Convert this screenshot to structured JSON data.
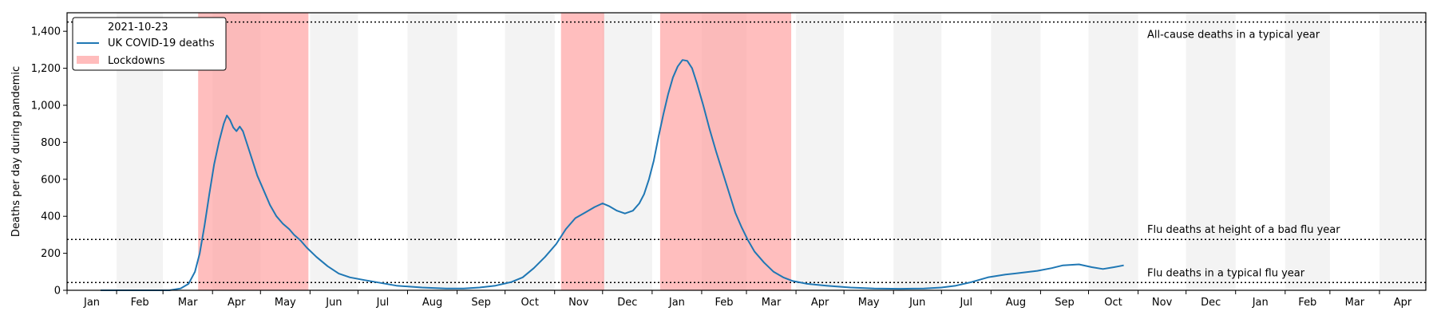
{
  "chart_data": {
    "type": "line",
    "ylabel": "Deaths per day during pandemic",
    "ylim": [
      0,
      1500
    ],
    "yticks": [
      0,
      200,
      400,
      600,
      800,
      1000,
      1200,
      1400
    ],
    "ytick_labels": [
      "0",
      "200",
      "400",
      "600",
      "800",
      "1,000",
      "1,200",
      "1,400"
    ],
    "x_start": "2020-01-01",
    "x_end": "2022-04-30",
    "month_labels": [
      "Jan",
      "Feb",
      "Mar",
      "Apr",
      "May",
      "Jun",
      "Jul",
      "Aug",
      "Sep",
      "Oct",
      "Nov",
      "Dec",
      "Jan",
      "Feb",
      "Mar",
      "Apr",
      "May",
      "Jun",
      "Jul",
      "Aug",
      "Sep",
      "Oct",
      "Nov",
      "Dec",
      "Jan",
      "Feb",
      "Mar",
      "Apr"
    ],
    "alternate_month_shading": true,
    "legend": {
      "placement": "top-left",
      "title": "2021-10-23",
      "series_label": "UK COVID-19 deaths",
      "lockdown_label": "Lockdowns"
    },
    "colors": {
      "series": "#1f77b4",
      "lockdown": "#ff9b9b",
      "month_shade": "#f3f3f3"
    },
    "lockdowns": [
      {
        "start": "2020-03-23",
        "end": "2020-05-31"
      },
      {
        "start": "2020-11-05",
        "end": "2020-12-02"
      },
      {
        "start": "2021-01-06",
        "end": "2021-03-29"
      }
    ],
    "reference_lines": [
      {
        "value": 1450,
        "label": "All-cause deaths in a typical year"
      },
      {
        "value": 275,
        "label": "Flu deaths at height of a bad flu year"
      },
      {
        "value": 42,
        "label": "Flu deaths in a typical flu year"
      }
    ],
    "series": [
      {
        "name": "UK COVID-19 deaths",
        "points": [
          [
            "2020-01-22",
            0
          ],
          [
            "2020-03-05",
            0
          ],
          [
            "2020-03-12",
            10
          ],
          [
            "2020-03-17",
            35
          ],
          [
            "2020-03-21",
            100
          ],
          [
            "2020-03-24",
            200
          ],
          [
            "2020-03-27",
            350
          ],
          [
            "2020-03-30",
            520
          ],
          [
            "2020-04-02",
            680
          ],
          [
            "2020-04-05",
            800
          ],
          [
            "2020-04-08",
            900
          ],
          [
            "2020-04-10",
            945
          ],
          [
            "2020-04-12",
            920
          ],
          [
            "2020-04-14",
            880
          ],
          [
            "2020-04-16",
            860
          ],
          [
            "2020-04-18",
            885
          ],
          [
            "2020-04-20",
            860
          ],
          [
            "2020-04-23",
            780
          ],
          [
            "2020-04-26",
            700
          ],
          [
            "2020-04-29",
            620
          ],
          [
            "2020-05-03",
            540
          ],
          [
            "2020-05-07",
            460
          ],
          [
            "2020-05-11",
            400
          ],
          [
            "2020-05-15",
            360
          ],
          [
            "2020-05-19",
            330
          ],
          [
            "2020-05-22",
            300
          ],
          [
            "2020-05-26",
            270
          ],
          [
            "2020-05-30",
            230
          ],
          [
            "2020-06-05",
            180
          ],
          [
            "2020-06-12",
            130
          ],
          [
            "2020-06-19",
            90
          ],
          [
            "2020-06-26",
            70
          ],
          [
            "2020-07-05",
            55
          ],
          [
            "2020-07-15",
            40
          ],
          [
            "2020-07-25",
            25
          ],
          [
            "2020-08-10",
            15
          ],
          [
            "2020-08-25",
            10
          ],
          [
            "2020-09-05",
            10
          ],
          [
            "2020-09-15",
            15
          ],
          [
            "2020-09-25",
            25
          ],
          [
            "2020-10-05",
            45
          ],
          [
            "2020-10-12",
            70
          ],
          [
            "2020-10-19",
            120
          ],
          [
            "2020-10-26",
            180
          ],
          [
            "2020-11-02",
            250
          ],
          [
            "2020-11-08",
            330
          ],
          [
            "2020-11-14",
            390
          ],
          [
            "2020-11-20",
            420
          ],
          [
            "2020-11-26",
            450
          ],
          [
            "2020-12-01",
            470
          ],
          [
            "2020-12-05",
            455
          ],
          [
            "2020-12-10",
            430
          ],
          [
            "2020-12-15",
            415
          ],
          [
            "2020-12-20",
            430
          ],
          [
            "2020-12-24",
            470
          ],
          [
            "2020-12-27",
            520
          ],
          [
            "2020-12-30",
            600
          ],
          [
            "2021-01-02",
            700
          ],
          [
            "2021-01-05",
            830
          ],
          [
            "2021-01-08",
            950
          ],
          [
            "2021-01-11",
            1060
          ],
          [
            "2021-01-14",
            1150
          ],
          [
            "2021-01-17",
            1210
          ],
          [
            "2021-01-20",
            1245
          ],
          [
            "2021-01-23",
            1240
          ],
          [
            "2021-01-26",
            1200
          ],
          [
            "2021-01-29",
            1120
          ],
          [
            "2021-02-02",
            1000
          ],
          [
            "2021-02-06",
            870
          ],
          [
            "2021-02-10",
            750
          ],
          [
            "2021-02-14",
            640
          ],
          [
            "2021-02-18",
            530
          ],
          [
            "2021-02-22",
            420
          ],
          [
            "2021-02-26",
            340
          ],
          [
            "2021-03-02",
            270
          ],
          [
            "2021-03-06",
            210
          ],
          [
            "2021-03-12",
            150
          ],
          [
            "2021-03-18",
            100
          ],
          [
            "2021-03-24",
            70
          ],
          [
            "2021-03-30",
            50
          ],
          [
            "2021-04-08",
            35
          ],
          [
            "2021-04-20",
            25
          ],
          [
            "2021-05-05",
            15
          ],
          [
            "2021-05-20",
            10
          ],
          [
            "2021-06-05",
            8
          ],
          [
            "2021-06-20",
            10
          ],
          [
            "2021-07-01",
            15
          ],
          [
            "2021-07-10",
            25
          ],
          [
            "2021-07-20",
            45
          ],
          [
            "2021-07-30",
            70
          ],
          [
            "2021-08-10",
            85
          ],
          [
            "2021-08-20",
            95
          ],
          [
            "2021-08-30",
            105
          ],
          [
            "2021-09-08",
            120
          ],
          [
            "2021-09-15",
            135
          ],
          [
            "2021-09-25",
            140
          ],
          [
            "2021-10-03",
            125
          ],
          [
            "2021-10-10",
            115
          ],
          [
            "2021-10-17",
            125
          ],
          [
            "2021-10-23",
            135
          ]
        ]
      }
    ]
  }
}
